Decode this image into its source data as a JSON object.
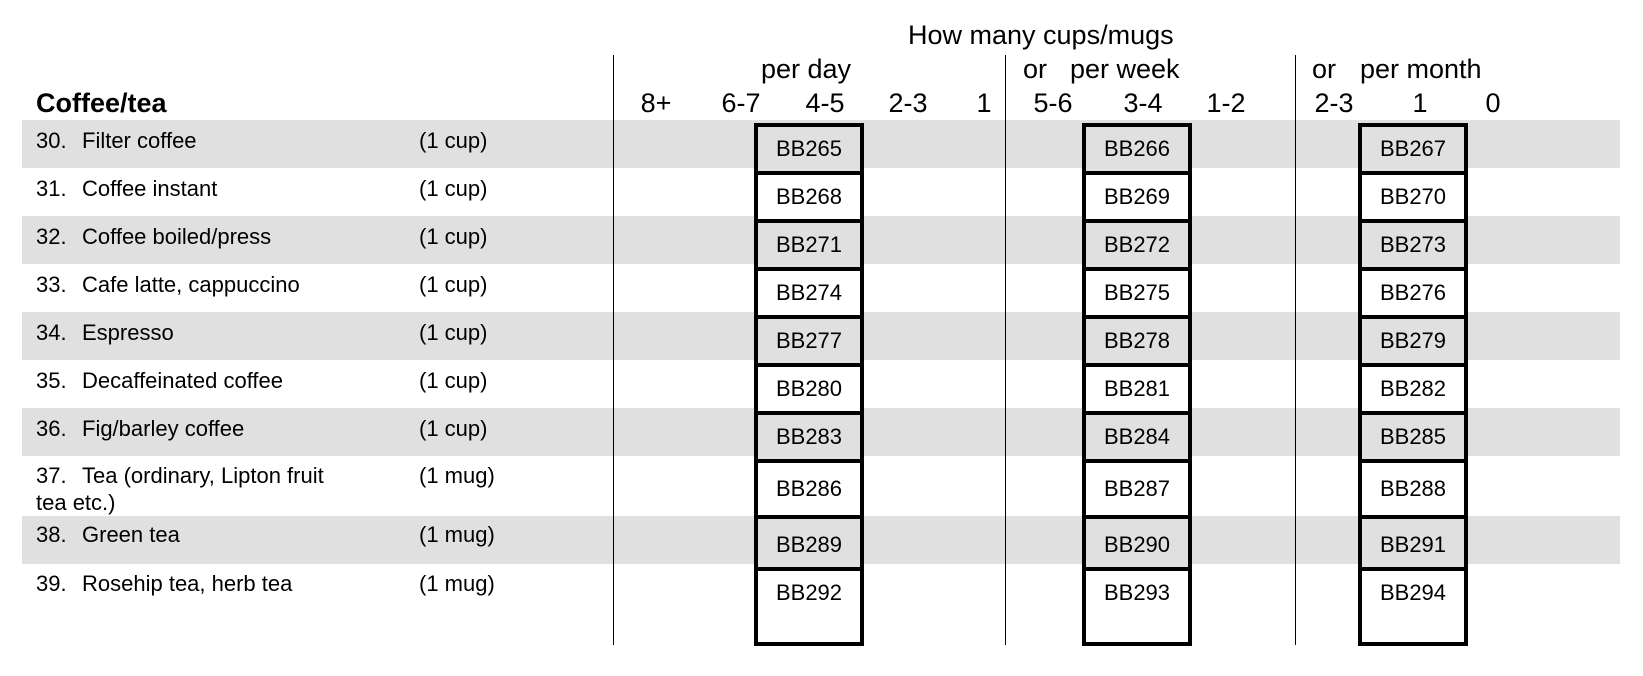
{
  "header": {
    "top_title": "How many cups/mugs",
    "section_title": "Coffee/tea",
    "periods": {
      "day": "per day",
      "week_or": "or",
      "week": "per week",
      "month_or": "or",
      "month": "per month"
    },
    "frequencies": [
      "8+",
      "6-7",
      "4-5",
      "2-3",
      "1",
      "5-6",
      "3-4",
      "1-2",
      "2-3",
      "1",
      "0"
    ]
  },
  "rows": [
    {
      "number": "30.",
      "item": "Filter coffee",
      "portion": "(1 cup)",
      "codes": [
        "BB265",
        "BB266",
        "BB267"
      ]
    },
    {
      "number": "31.",
      "item": "Coffee instant",
      "portion": "(1 cup)",
      "codes": [
        "BB268",
        "BB269",
        "BB270"
      ]
    },
    {
      "number": "32.",
      "item": "Coffee boiled/press",
      "portion": "(1 cup)",
      "codes": [
        "BB271",
        "BB272",
        "BB273"
      ]
    },
    {
      "number": "33.",
      "item": "Cafe latte, cappuccino",
      "portion": "(1 cup)",
      "codes": [
        "BB274",
        "BB275",
        "BB276"
      ]
    },
    {
      "number": "34.",
      "item": "Espresso",
      "portion": "(1 cup)",
      "codes": [
        "BB277",
        "BB278",
        "BB279"
      ]
    },
    {
      "number": "35.",
      "item": "Decaffeinated coffee",
      "portion": "(1 cup)",
      "codes": [
        "BB280",
        "BB281",
        "BB282"
      ]
    },
    {
      "number": "36.",
      "item": "Fig/barley coffee",
      "portion": "(1 cup)",
      "codes": [
        "BB283",
        "BB284",
        "BB285"
      ]
    },
    {
      "number": "37.",
      "item": "Tea (ordinary, Lipton fruit",
      "item_line2": "tea etc.)",
      "portion": "(1 mug)",
      "codes": [
        "BB286",
        "BB287",
        "BB288"
      ]
    },
    {
      "number": "38.",
      "item": "Green tea",
      "portion": "(1 mug)",
      "codes": [
        "BB289",
        "BB290",
        "BB291"
      ]
    },
    {
      "number": "39.",
      "item": "Rosehip tea, herb tea",
      "portion": "(1 mug)",
      "codes": [
        "BB292",
        "BB293",
        "BB294"
      ]
    }
  ],
  "colors": {
    "row_shade": "#e0e0e0",
    "border": "#000000"
  }
}
